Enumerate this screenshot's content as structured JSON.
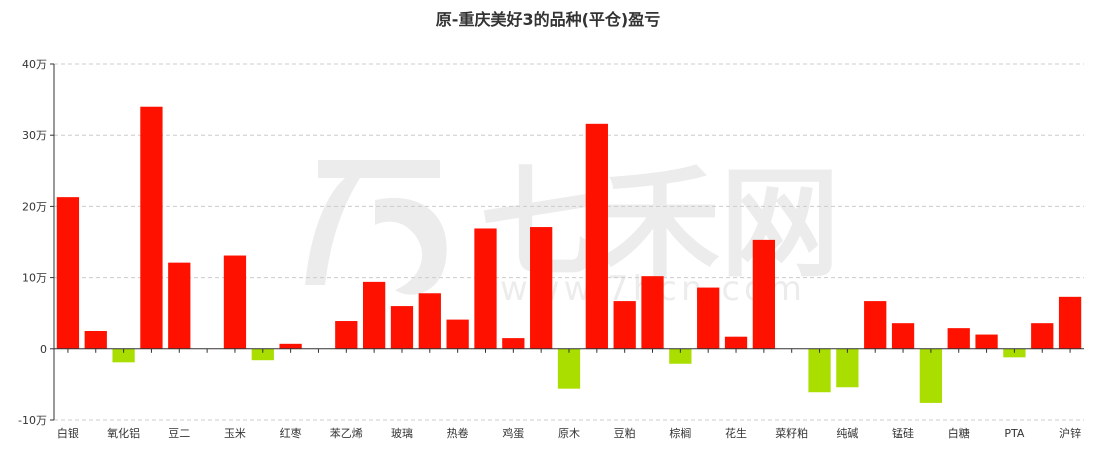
{
  "chart_data": {
    "type": "bar",
    "title": "原-重庆美好3的品种(平仓)盈亏",
    "xlabel": "",
    "ylabel": "",
    "ylim": [
      -10,
      40
    ],
    "y_ticks": [
      {
        "value": -10,
        "label": "-10万"
      },
      {
        "value": 0,
        "label": "0"
      },
      {
        "value": 10,
        "label": "10万"
      },
      {
        "value": 20,
        "label": "20万"
      },
      {
        "value": 30,
        "label": "30万"
      },
      {
        "value": 40,
        "label": "40万"
      }
    ],
    "grid": true,
    "positive_color": "#ff1100",
    "negative_color": "#aadd00",
    "categories": [
      "白银",
      "",
      "氧化铝",
      "",
      "豆二",
      "",
      "玉米",
      "",
      "红枣",
      "",
      "苯乙烯",
      "",
      "玻璃",
      "",
      "热卷",
      "",
      "鸡蛋",
      "",
      "原木",
      "",
      "豆粕",
      "",
      "棕榈",
      "",
      "花生",
      "",
      "菜籽粕",
      "",
      "纯碱",
      "",
      "锰硅",
      "",
      "白糖",
      "",
      "PTA",
      "",
      "沪锌"
    ],
    "values": [
      21.3,
      2.5,
      -1.9,
      34.0,
      12.1,
      0,
      13.1,
      -1.6,
      0.7,
      0,
      3.9,
      9.4,
      6.0,
      7.8,
      4.1,
      16.9,
      1.5,
      17.1,
      -5.6,
      31.6,
      6.7,
      10.2,
      -2.1,
      8.6,
      1.7,
      15.3,
      0,
      -6.1,
      -5.4,
      6.7,
      3.6,
      -7.6,
      2.9,
      2.0,
      -1.2,
      3.6,
      7.3
    ]
  },
  "watermark": {
    "brand": "七禾网",
    "url": "www.7hcn.com"
  }
}
